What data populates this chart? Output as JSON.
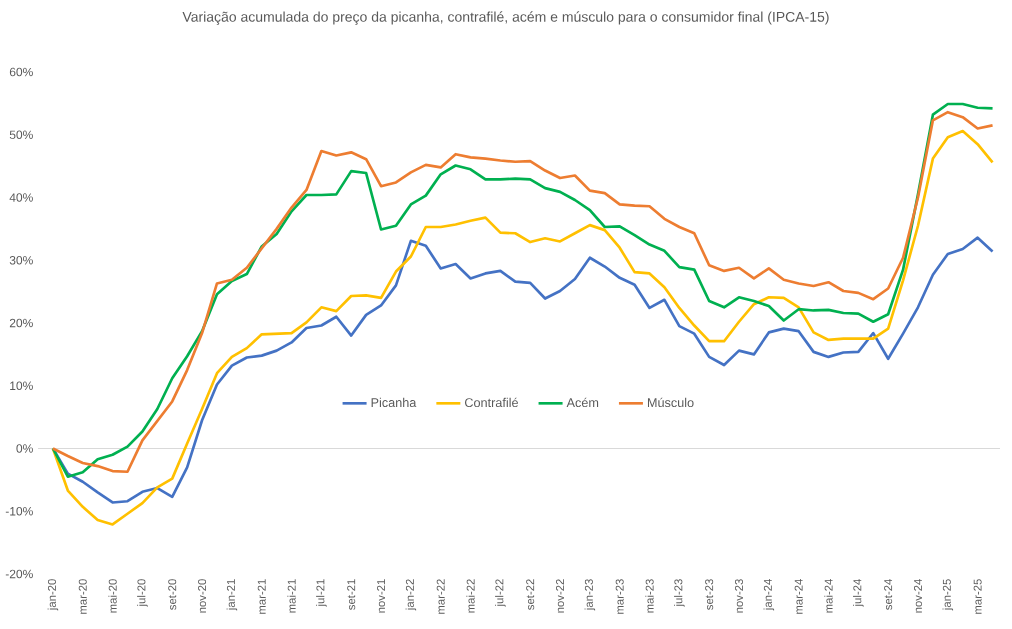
{
  "chart_data": {
    "type": "line",
    "title": "Variação acumulada do preço da picanha, contrafilé, acém e músculo para o consumidor final (IPCA-15)",
    "categories": [
      "jan-20",
      null,
      "mar-20",
      null,
      "mai-20",
      null,
      "jul-20",
      null,
      "set-20",
      null,
      "nov-20",
      null,
      "jan-21",
      null,
      "mar-21",
      null,
      "mai-21",
      null,
      "jul-21",
      null,
      "set-21",
      null,
      "nov-21",
      null,
      "jan-22",
      null,
      "mar-22",
      null,
      "mai-22",
      null,
      "jul-22",
      null,
      "set-22",
      null,
      "nov-22",
      null,
      "jan-23",
      null,
      "mar-23",
      null,
      "mai-23",
      null,
      "jul-23",
      null,
      "set-23",
      null,
      "nov-23",
      null,
      "jan-24",
      null,
      "mar-24",
      null,
      "mai-24",
      null,
      "jul-24",
      null,
      "set-24",
      null,
      "nov-24",
      null,
      "jan-25",
      null,
      "mar-25",
      null
    ],
    "ylim": [
      -20,
      60
    ],
    "yticks": [
      {
        "value": -20,
        "label": "-20%"
      },
      {
        "value": -10,
        "label": "-10%"
      },
      {
        "value": 0,
        "label": "0%"
      },
      {
        "value": 10,
        "label": "10%"
      },
      {
        "value": 20,
        "label": "20%"
      },
      {
        "value": 30,
        "label": "30%"
      },
      {
        "value": 40,
        "label": "40%"
      },
      {
        "value": 50,
        "label": "50%"
      },
      {
        "value": 60,
        "label": "60%"
      }
    ],
    "legend": "center",
    "series": [
      {
        "name": "Picanha",
        "color": "#4472c4",
        "values": [
          0,
          -4,
          -5.3,
          -7,
          -8.6,
          -8.4,
          -6.9,
          -6.3,
          -7.7,
          -3,
          4.5,
          10.2,
          13.2,
          14.5,
          14.8,
          15.6,
          16.9,
          19.2,
          19.6,
          21,
          18,
          21.3,
          22.8,
          26,
          33.1,
          32.3,
          28.7,
          29.4,
          27.1,
          27.9,
          28.3,
          26.6,
          26.4,
          23.9,
          25.1,
          27,
          30.4,
          29,
          27.2,
          26.1,
          22.4,
          23.7,
          19.5,
          18.3,
          14.6,
          13.3,
          15.6,
          15,
          18.5,
          19.1,
          18.7,
          15.4,
          14.6,
          15.3,
          15.4,
          18.4,
          14.3,
          18.3,
          22.5,
          27.7,
          31,
          31.8,
          33.6,
          31.4
        ]
      },
      {
        "name": "Contrafilé",
        "color": "#ffc000",
        "values": [
          0,
          -6.7,
          -9.3,
          -11.4,
          -12.1,
          -10.4,
          -8.7,
          -6.2,
          -4.8,
          0.8,
          6.3,
          12,
          14.6,
          16,
          18.2,
          18.3,
          18.4,
          20.1,
          22.5,
          21.9,
          24.3,
          24.4,
          24,
          28.2,
          30.6,
          35.3,
          35.3,
          35.7,
          36.3,
          36.8,
          34.4,
          34.3,
          32.9,
          33.5,
          33,
          34.3,
          35.6,
          34.8,
          32,
          28.1,
          27.9,
          25.7,
          22.4,
          19.6,
          17.1,
          17.1,
          20.2,
          23,
          24.1,
          24,
          22.5,
          18.5,
          17.3,
          17.5,
          17.5,
          17.5,
          19.1,
          26.8,
          35.5,
          46.2,
          49.6,
          50.6,
          48.5,
          45.6
        ]
      },
      {
        "name": "Acém",
        "color": "#00b050",
        "values": [
          0,
          -4.5,
          -3.8,
          -1.7,
          -1,
          0.3,
          2.7,
          6.3,
          11.2,
          14.7,
          18.7,
          24.6,
          26.7,
          27.8,
          32.2,
          34.2,
          37.8,
          40.4,
          40.4,
          40.5,
          44.2,
          43.9,
          34.9,
          35.5,
          38.9,
          40.3,
          43.7,
          45.1,
          44.5,
          42.9,
          42.9,
          43,
          42.9,
          41.5,
          40.9,
          39.6,
          38,
          35.3,
          35.4,
          34,
          32.5,
          31.5,
          28.9,
          28.5,
          23.5,
          22.5,
          24.1,
          23.5,
          22.7,
          20.4,
          22.2,
          22,
          22.1,
          21.6,
          21.5,
          20.2,
          21.4,
          28.5,
          40.5,
          53.2,
          54.9,
          54.9,
          54.3,
          54.2
        ]
      },
      {
        "name": "Músculo",
        "color": "#ed7d31",
        "values": [
          0,
          -1.2,
          -2.3,
          -2.8,
          -3.6,
          -3.7,
          1.3,
          4.4,
          7.5,
          12.5,
          18.4,
          26.3,
          26.9,
          28.8,
          31.9,
          35,
          38.4,
          41.2,
          47.4,
          46.7,
          47.2,
          46.1,
          41.8,
          42.4,
          44,
          45.2,
          44.8,
          46.9,
          46.4,
          46.2,
          45.9,
          45.7,
          45.8,
          44.3,
          43.1,
          43.5,
          41.1,
          40.7,
          38.9,
          38.7,
          38.6,
          36.6,
          35.3,
          34.3,
          29.2,
          28.3,
          28.8,
          27.1,
          28.7,
          26.9,
          26.3,
          25.9,
          26.5,
          25.1,
          24.8,
          23.8,
          25.5,
          30.4,
          40,
          52.3,
          53.6,
          52.8,
          51,
          51.5
        ]
      }
    ]
  }
}
